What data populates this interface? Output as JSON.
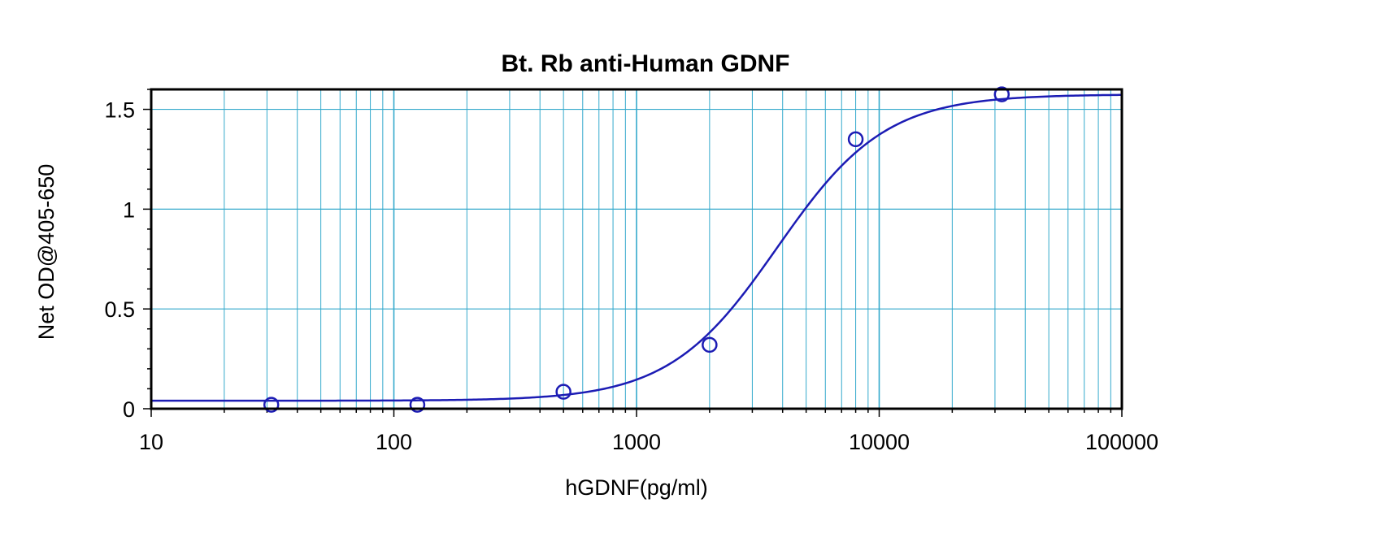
{
  "chart_data": {
    "type": "scatter",
    "title": "Bt. Rb anti-Human GDNF",
    "xlabel": "hGDNF(pg/ml)",
    "ylabel": "Net OD@405-650",
    "x_scale": "log",
    "xlim": [
      10,
      100000
    ],
    "ylim": [
      0,
      1.6
    ],
    "x_ticks": [
      10,
      100,
      1000,
      10000,
      100000
    ],
    "x_tick_labels": [
      "10",
      "100",
      "1000",
      "10000",
      "100000"
    ],
    "y_ticks": [
      0,
      0.5,
      1,
      1.5
    ],
    "y_tick_labels": [
      "0",
      "0.5",
      "1",
      "1.5"
    ],
    "grid": true,
    "grid_color": "#33a9cc",
    "series": [
      {
        "marker": "open-circle",
        "color": "#1c1cb4",
        "x": [
          31.25,
          125,
          500,
          2000,
          8000,
          32000
        ],
        "y": [
          0.02,
          0.02,
          0.085,
          0.32,
          1.35,
          1.575
        ]
      }
    ],
    "fit_curve": {
      "type": "4PL",
      "color": "#1c1cb4",
      "bottom": 0.04,
      "top": 1.575,
      "ec50": 3800,
      "hill": 1.95
    }
  }
}
